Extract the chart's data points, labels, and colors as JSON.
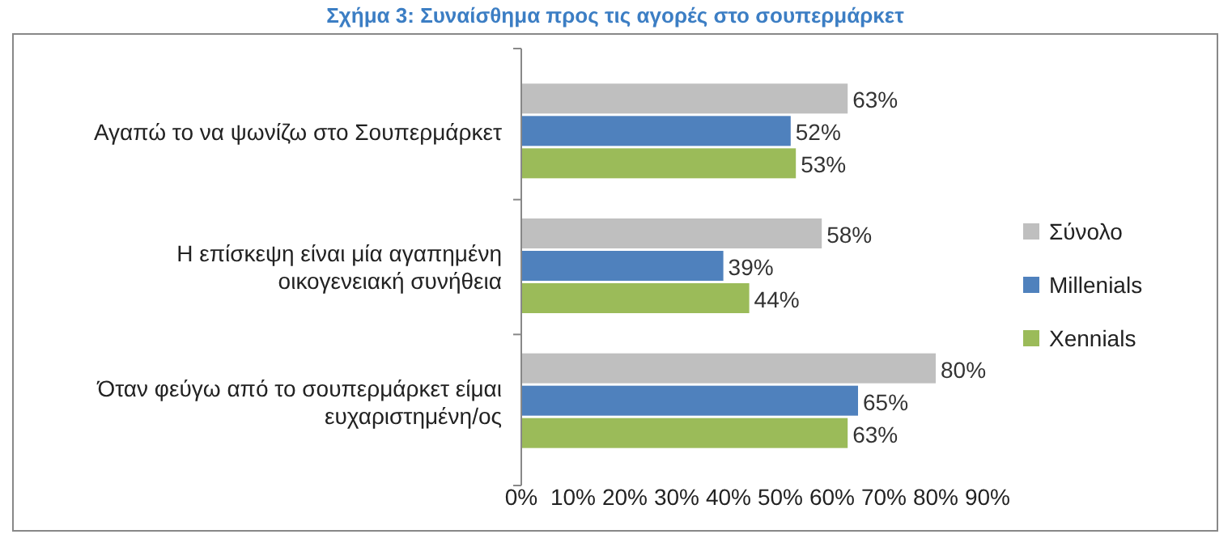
{
  "chart_data": {
    "type": "bar",
    "orientation": "horizontal",
    "title": "Σχήμα 3: Συναίσθημα προς τις αγορές στο σουπερμάρκετ",
    "categories": [
      "Αγαπώ το να ψωνίζω στο Σουπερμάρκετ",
      "Η επίσκεψη είναι μία αγαπημένη οικογενειακή συνήθεια",
      "Όταν φεύγω από το σουπερμάρκετ είμαι ευχαριστημένη/ος"
    ],
    "series": [
      {
        "name": "Σύνολο",
        "color": "#bfbfbf",
        "values": [
          63,
          58,
          80
        ],
        "value_labels": [
          "63%",
          "58%",
          "80%"
        ]
      },
      {
        "name": "Millenials",
        "color": "#4f81bd",
        "values": [
          52,
          39,
          65
        ],
        "value_labels": [
          "52%",
          "39%",
          "65%"
        ]
      },
      {
        "name": "Xennials",
        "color": "#9bbb59",
        "values": [
          53,
          44,
          63
        ],
        "value_labels": [
          "53%",
          "44%",
          "63%"
        ]
      }
    ],
    "xlim": [
      0,
      90
    ],
    "xticks": [
      {
        "value": 0,
        "label": "0%"
      },
      {
        "value": 10,
        "label": "10%"
      },
      {
        "value": 20,
        "label": "20%"
      },
      {
        "value": 30,
        "label": "30%"
      },
      {
        "value": 40,
        "label": "40%"
      },
      {
        "value": 50,
        "label": "50%"
      },
      {
        "value": 60,
        "label": "60%"
      },
      {
        "value": 70,
        "label": "70%"
      },
      {
        "value": 80,
        "label": "80%"
      },
      {
        "value": 90,
        "label": "90%"
      }
    ],
    "legend": "right"
  }
}
